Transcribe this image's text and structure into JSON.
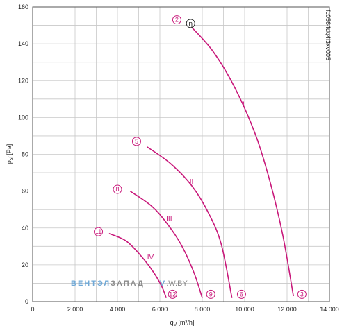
{
  "chart_data": {
    "type": "line",
    "xlabel": "q",
    "xlabel_sub": "V",
    "xlabel_unit": "[m³/h]",
    "ylabel": "p",
    "ylabel_sub": "sf",
    "ylabel_unit": "[Pa]",
    "xlim": [
      0,
      14000
    ],
    "ylim": [
      0,
      160
    ],
    "x_ticks": [
      0,
      2000,
      4000,
      6000,
      8000,
      10000,
      12000,
      14000
    ],
    "x_tick_labels": [
      "0",
      "2.000",
      "4.000",
      "6.000",
      "8.000",
      "10.000",
      "12.000",
      "14.000"
    ],
    "y_ticks": [
      0,
      20,
      40,
      60,
      80,
      100,
      120,
      140,
      160
    ],
    "y_tick_labels": [
      "0",
      "20",
      "40",
      "60",
      "80",
      "100",
      "120",
      "140",
      "160"
    ],
    "grid": true,
    "line_color": "#c8187a",
    "series": [
      {
        "name": "I",
        "points": [
          [
            7500,
            149
          ],
          [
            8500,
            136
          ],
          [
            9500,
            117
          ],
          [
            10500,
            91
          ],
          [
            11200,
            65
          ],
          [
            11800,
            36
          ],
          [
            12300,
            3
          ]
        ],
        "label_at": [
          9900,
          106
        ]
      },
      {
        "name": "II",
        "points": [
          [
            5400,
            84
          ],
          [
            6500,
            75
          ],
          [
            7500,
            63
          ],
          [
            8300,
            48
          ],
          [
            8900,
            31
          ],
          [
            9400,
            2
          ]
        ],
        "label_at": [
          7400,
          64
        ]
      },
      {
        "name": "III",
        "points": [
          [
            4600,
            60
          ],
          [
            5600,
            52
          ],
          [
            6300,
            43
          ],
          [
            7000,
            31
          ],
          [
            7600,
            16
          ],
          [
            8000,
            2
          ]
        ],
        "label_at": [
          6300,
          44
        ]
      },
      {
        "name": "IV",
        "points": [
          [
            3600,
            37
          ],
          [
            4400,
            33
          ],
          [
            5100,
            25
          ],
          [
            5700,
            16
          ],
          [
            6100,
            8
          ],
          [
            6300,
            2
          ]
        ],
        "label_at": [
          5400,
          23
        ]
      }
    ],
    "point_markers": [
      {
        "label": "2",
        "x": 6800,
        "y": 153
      },
      {
        "label": "5",
        "x": 4900,
        "y": 87
      },
      {
        "label": "8",
        "x": 4000,
        "y": 61
      },
      {
        "label": "11",
        "x": 3100,
        "y": 38
      },
      {
        "label": "12",
        "x": 6600,
        "y": 4
      },
      {
        "label": "9",
        "x": 8400,
        "y": 4
      },
      {
        "label": "6",
        "x": 9850,
        "y": 4
      },
      {
        "label": "3",
        "x": 12700,
        "y": 4
      }
    ],
    "eta_marker": {
      "label": "η",
      "x": 7450,
      "y": 151
    }
  },
  "figure_code": "fc0564dq4i3xv005",
  "watermark": {
    "part1": "ВЕНТЭЛ",
    "part2": "ЗАПАД",
    "part3": "V",
    "part4": ".W.BY",
    "color1": "#6fa8d6",
    "color2": "#8a8a8a"
  }
}
